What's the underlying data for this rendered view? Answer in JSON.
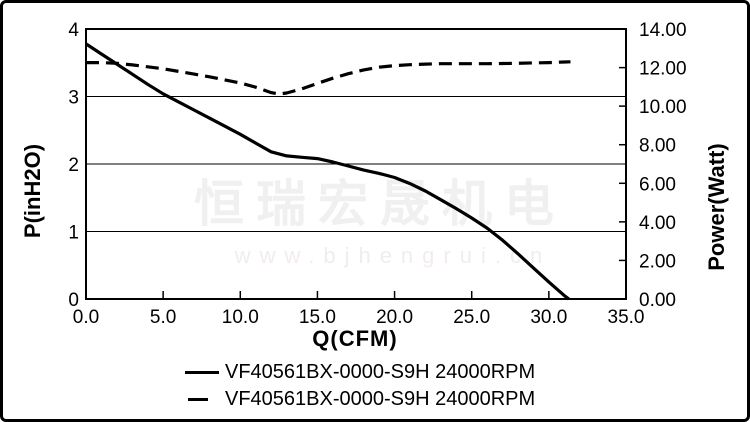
{
  "figure": {
    "background": "#ffffff",
    "border_color": "#000000"
  },
  "watermark": {
    "line1": "恒瑞宏晟机电",
    "line2": "www.bjhengrui.cn",
    "color": "#f1f0f0"
  },
  "chart_data": {
    "type": "line",
    "title": "",
    "xlabel": "Q(CFM)",
    "ylabel_left": "P(inH2O)",
    "ylabel_right": "Power(Watt)",
    "x_range": [
      0,
      35
    ],
    "x_tick_labels": [
      "0.0",
      "5.0",
      "10.0",
      "15.0",
      "20.0",
      "25.0",
      "30.0",
      "35.0"
    ],
    "y_left_range": [
      0,
      4
    ],
    "y_left_tick_labels": [
      "0",
      "1",
      "2",
      "3",
      "4"
    ],
    "y_right_range": [
      0,
      14
    ],
    "y_right_tick_labels": [
      "0.00",
      "2.00",
      "4.00",
      "6.00",
      "8.00",
      "10.00",
      "12.00",
      "14.00"
    ],
    "grid_values": [
      1,
      2,
      3
    ],
    "grid": "horizontal",
    "line_color": "#000000",
    "legend_position": "bottom",
    "series": [
      {
        "name": "VF40561BX-0000-S9H 24000RPM",
        "line_style": "solid",
        "y_axis": "left",
        "points": [
          [
            0,
            3.78
          ],
          [
            1,
            3.63
          ],
          [
            2,
            3.48
          ],
          [
            3,
            3.33
          ],
          [
            4,
            3.18
          ],
          [
            5,
            3.04
          ],
          [
            6,
            2.92
          ],
          [
            7,
            2.8
          ],
          [
            8,
            2.68
          ],
          [
            9,
            2.56
          ],
          [
            10,
            2.44
          ],
          [
            11,
            2.31
          ],
          [
            12,
            2.18
          ],
          [
            13,
            2.12
          ],
          [
            14,
            2.1
          ],
          [
            15,
            2.08
          ],
          [
            16,
            2.03
          ],
          [
            17,
            1.97
          ],
          [
            18,
            1.91
          ],
          [
            19,
            1.86
          ],
          [
            20,
            1.8
          ],
          [
            21,
            1.71
          ],
          [
            22,
            1.6
          ],
          [
            23,
            1.47
          ],
          [
            24,
            1.34
          ],
          [
            25,
            1.2
          ],
          [
            26,
            1.05
          ],
          [
            27,
            0.87
          ],
          [
            28,
            0.67
          ],
          [
            29,
            0.46
          ],
          [
            30,
            0.25
          ],
          [
            31,
            0.05
          ],
          [
            31.3,
            0
          ]
        ]
      },
      {
        "name": "VF40561BX-0000-S9H 24000RPM",
        "line_style": "dashed",
        "y_axis": "right",
        "points": [
          [
            0,
            12.26
          ],
          [
            1,
            12.26
          ],
          [
            2,
            12.22
          ],
          [
            3,
            12.14
          ],
          [
            4,
            12.04
          ],
          [
            5,
            11.94
          ],
          [
            6,
            11.8
          ],
          [
            7,
            11.66
          ],
          [
            8,
            11.52
          ],
          [
            9,
            11.36
          ],
          [
            10,
            11.2
          ],
          [
            11,
            10.98
          ],
          [
            12,
            10.7
          ],
          [
            12.5,
            10.63
          ],
          [
            13,
            10.68
          ],
          [
            14,
            10.9
          ],
          [
            15,
            11.18
          ],
          [
            16,
            11.45
          ],
          [
            17,
            11.68
          ],
          [
            18,
            11.88
          ],
          [
            19,
            12.02
          ],
          [
            20,
            12.1
          ],
          [
            21,
            12.15
          ],
          [
            22,
            12.18
          ],
          [
            23,
            12.2
          ],
          [
            24,
            12.2
          ],
          [
            25,
            12.2
          ],
          [
            26,
            12.2
          ],
          [
            27,
            12.21
          ],
          [
            28,
            12.22
          ],
          [
            29,
            12.24
          ],
          [
            30,
            12.26
          ],
          [
            31,
            12.29
          ],
          [
            31.4,
            12.3
          ]
        ]
      }
    ]
  }
}
